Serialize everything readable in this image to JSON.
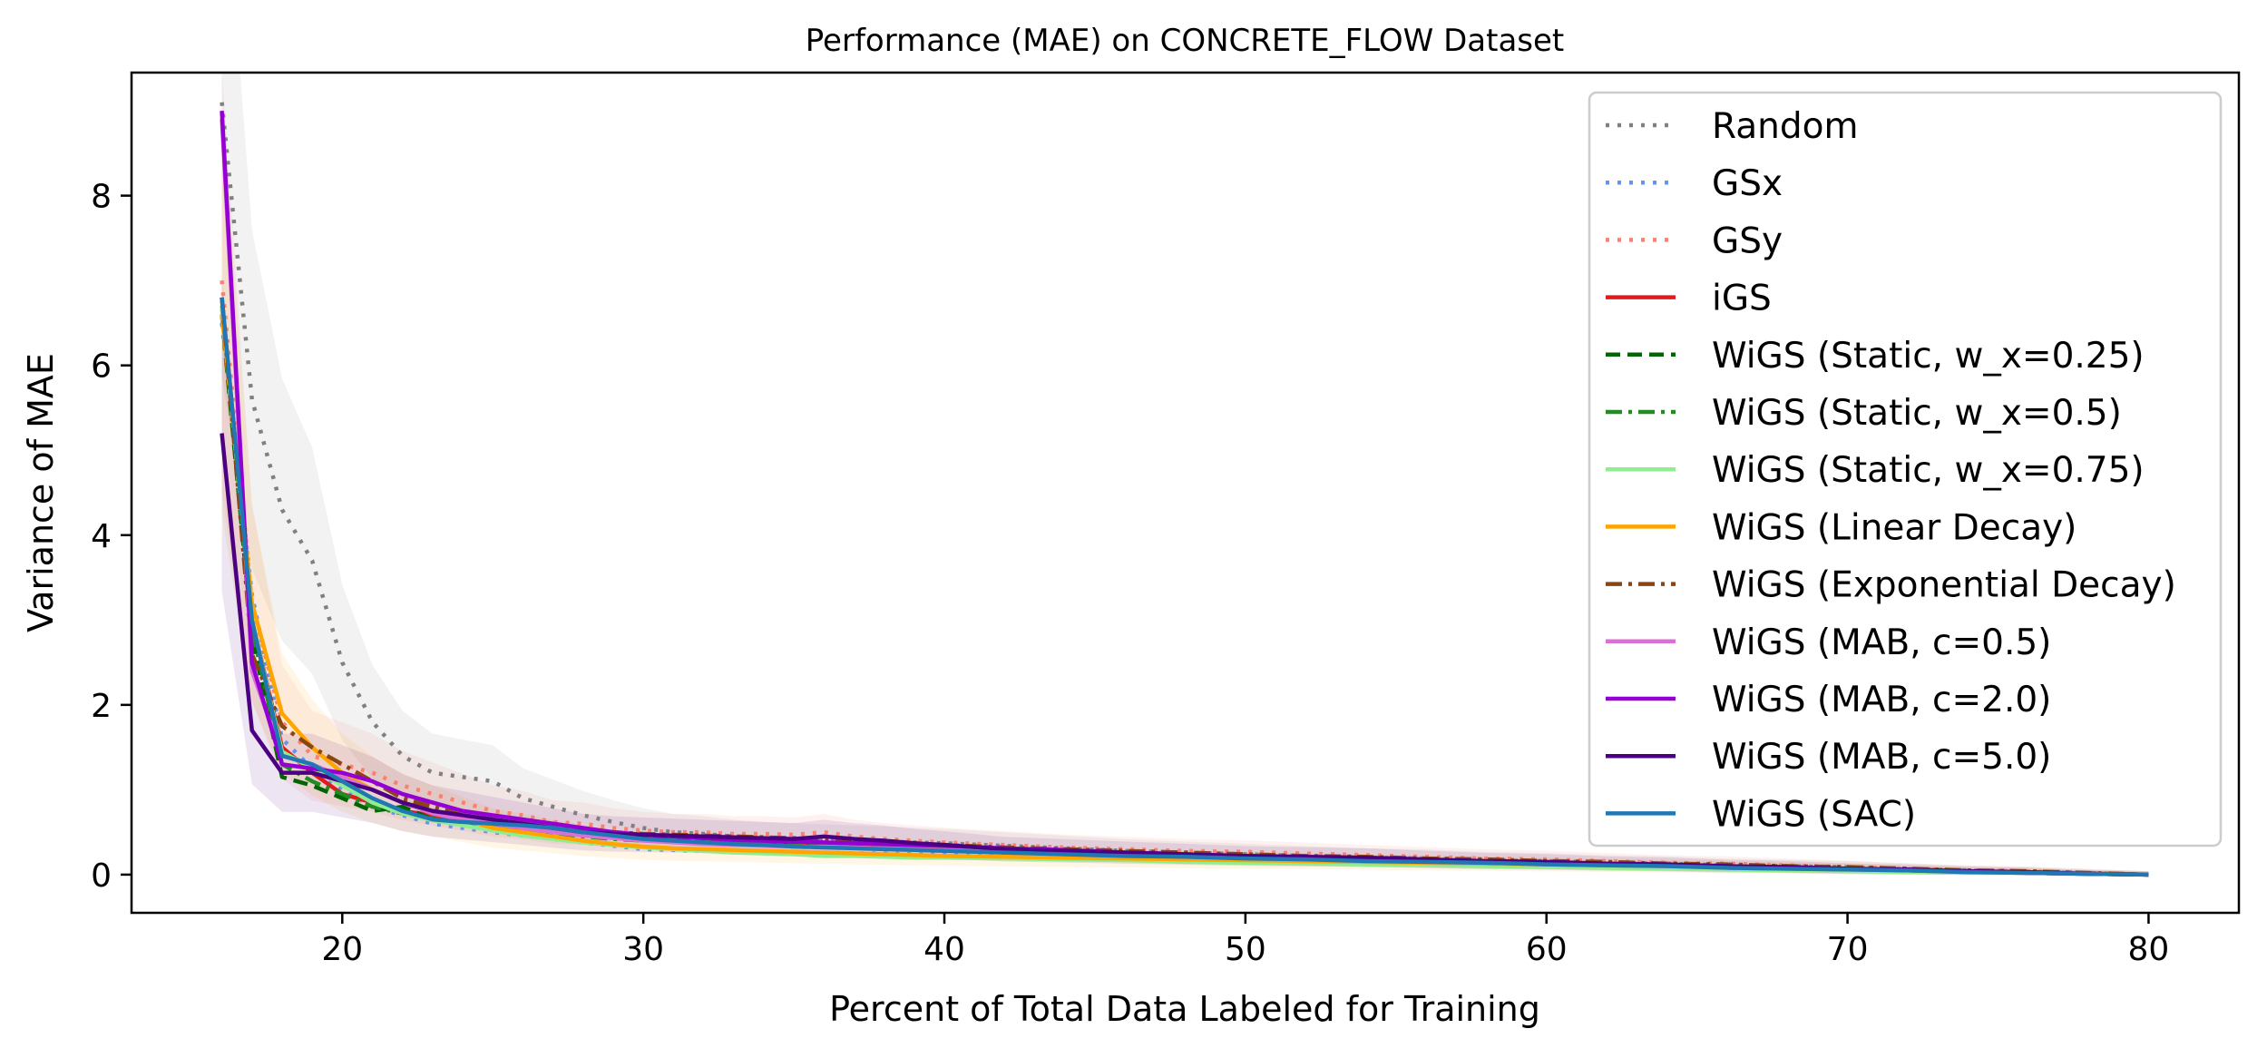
{
  "chart_data": {
    "type": "line",
    "title": "Performance (MAE) on CONCRETE_FLOW Dataset",
    "xlabel": "Percent of Total Data Labeled for Training",
    "ylabel": "Variance of MAE",
    "xlim": [
      13,
      83
    ],
    "ylim": [
      -0.45,
      9.45
    ],
    "xticks": [
      20,
      30,
      40,
      50,
      60,
      70,
      80
    ],
    "yticks": [
      0,
      2,
      4,
      6,
      8
    ],
    "grid": false,
    "legend_position": "upper right",
    "x": [
      16,
      17,
      18,
      19,
      20,
      21,
      22,
      23,
      24,
      25,
      26,
      27,
      28,
      29,
      30,
      31,
      32,
      33,
      34,
      35,
      36,
      37,
      38,
      39,
      40,
      42,
      44,
      46,
      48,
      50,
      52,
      54,
      56,
      58,
      60,
      62,
      64,
      66,
      68,
      70,
      72,
      74,
      76,
      78,
      80
    ],
    "series": [
      {
        "name": "Random",
        "color": "#808080",
        "dash": "dotted",
        "band": true,
        "values": [
          9.1,
          5.6,
          4.3,
          3.7,
          2.5,
          1.8,
          1.4,
          1.2,
          1.15,
          1.1,
          0.9,
          0.8,
          0.7,
          0.62,
          0.55,
          0.5,
          0.48,
          0.45,
          0.43,
          0.42,
          0.41,
          0.4,
          0.39,
          0.38,
          0.37,
          0.34,
          0.31,
          0.28,
          0.26,
          0.24,
          0.22,
          0.2,
          0.19,
          0.17,
          0.16,
          0.14,
          0.13,
          0.11,
          0.1,
          0.09,
          0.07,
          0.05,
          0.04,
          0.02,
          0.0
        ]
      },
      {
        "name": "GSx",
        "color": "#6495ED",
        "dash": "dotted",
        "band": false,
        "values": [
          6.5,
          3.3,
          1.6,
          1.25,
          1.0,
          0.8,
          0.7,
          0.6,
          0.55,
          0.5,
          0.46,
          0.42,
          0.38,
          0.34,
          0.3,
          0.29,
          0.28,
          0.27,
          0.27,
          0.26,
          0.26,
          0.25,
          0.25,
          0.24,
          0.24,
          0.22,
          0.2,
          0.18,
          0.17,
          0.15,
          0.14,
          0.13,
          0.12,
          0.11,
          0.1,
          0.09,
          0.08,
          0.07,
          0.06,
          0.05,
          0.04,
          0.03,
          0.02,
          0.01,
          0.0
        ]
      },
      {
        "name": "GSy",
        "color": "#FA8072",
        "dash": "dotted",
        "band": true,
        "values": [
          7.0,
          3.2,
          1.8,
          1.4,
          1.3,
          1.2,
          1.05,
          0.95,
          0.85,
          0.75,
          0.7,
          0.62,
          0.6,
          0.55,
          0.52,
          0.5,
          0.5,
          0.48,
          0.48,
          0.47,
          0.5,
          0.45,
          0.42,
          0.4,
          0.38,
          0.35,
          0.32,
          0.3,
          0.28,
          0.27,
          0.25,
          0.23,
          0.21,
          0.19,
          0.18,
          0.16,
          0.14,
          0.13,
          0.11,
          0.09,
          0.07,
          0.05,
          0.04,
          0.02,
          0.0
        ]
      },
      {
        "name": "iGS",
        "color": "#E31A1C",
        "dash": "solid",
        "band": false,
        "values": [
          6.8,
          3.0,
          1.5,
          1.2,
          0.95,
          0.85,
          0.75,
          0.7,
          0.65,
          0.6,
          0.55,
          0.5,
          0.47,
          0.44,
          0.42,
          0.4,
          0.38,
          0.37,
          0.36,
          0.35,
          0.35,
          0.34,
          0.33,
          0.32,
          0.31,
          0.29,
          0.27,
          0.25,
          0.23,
          0.21,
          0.19,
          0.18,
          0.16,
          0.14,
          0.13,
          0.11,
          0.1,
          0.09,
          0.08,
          0.06,
          0.05,
          0.04,
          0.02,
          0.01,
          0.0
        ]
      },
      {
        "name": "WiGS (Static, w_x=0.25)",
        "color": "#006400",
        "dash": "dashed",
        "band": false,
        "values": [
          6.6,
          2.8,
          1.15,
          1.05,
          0.9,
          0.75,
          0.8,
          0.65,
          0.6,
          0.55,
          0.52,
          0.5,
          0.48,
          0.46,
          0.45,
          0.44,
          0.43,
          0.42,
          0.4,
          0.38,
          0.37,
          0.36,
          0.35,
          0.33,
          0.32,
          0.3,
          0.28,
          0.26,
          0.24,
          0.22,
          0.2,
          0.19,
          0.17,
          0.15,
          0.14,
          0.12,
          0.11,
          0.09,
          0.08,
          0.07,
          0.05,
          0.04,
          0.02,
          0.01,
          0.0
        ]
      },
      {
        "name": "WiGS (Static, w_x=0.5)",
        "color": "#228B22",
        "dash": "dashdot",
        "band": false,
        "values": [
          6.7,
          2.9,
          1.3,
          1.1,
          0.95,
          0.8,
          0.72,
          0.66,
          0.6,
          0.56,
          0.52,
          0.48,
          0.45,
          0.42,
          0.4,
          0.39,
          0.38,
          0.36,
          0.35,
          0.34,
          0.33,
          0.32,
          0.31,
          0.3,
          0.29,
          0.27,
          0.25,
          0.23,
          0.21,
          0.2,
          0.18,
          0.17,
          0.15,
          0.14,
          0.12,
          0.11,
          0.1,
          0.08,
          0.07,
          0.06,
          0.05,
          0.03,
          0.02,
          0.01,
          0.0
        ]
      },
      {
        "name": "WiGS (Static, w_x=0.75)",
        "color": "#90EE90",
        "dash": "solid",
        "band": false,
        "values": [
          6.7,
          3.0,
          1.45,
          1.25,
          1.05,
          0.85,
          0.72,
          0.64,
          0.58,
          0.52,
          0.46,
          0.42,
          0.38,
          0.35,
          0.32,
          0.3,
          0.28,
          0.26,
          0.25,
          0.24,
          0.22,
          0.22,
          0.21,
          0.2,
          0.2,
          0.19,
          0.18,
          0.17,
          0.15,
          0.14,
          0.13,
          0.12,
          0.11,
          0.1,
          0.09,
          0.08,
          0.07,
          0.06,
          0.05,
          0.04,
          0.03,
          0.02,
          0.02,
          0.01,
          0.0
        ]
      },
      {
        "name": "WiGS (Linear Decay)",
        "color": "#FFA500",
        "dash": "solid",
        "band": true,
        "values": [
          6.6,
          3.2,
          1.9,
          1.5,
          1.2,
          1.0,
          0.85,
          0.75,
          0.65,
          0.55,
          0.5,
          0.45,
          0.4,
          0.36,
          0.33,
          0.31,
          0.3,
          0.29,
          0.28,
          0.27,
          0.26,
          0.25,
          0.24,
          0.23,
          0.22,
          0.21,
          0.2,
          0.19,
          0.18,
          0.17,
          0.16,
          0.15,
          0.14,
          0.13,
          0.12,
          0.11,
          0.1,
          0.09,
          0.08,
          0.07,
          0.05,
          0.04,
          0.03,
          0.01,
          0.0
        ]
      },
      {
        "name": "WiGS (Exponential Decay)",
        "color": "#8B4513",
        "dash": "dashdot",
        "band": false,
        "values": [
          6.8,
          2.6,
          1.75,
          1.5,
          1.3,
          1.1,
          0.9,
          0.8,
          0.7,
          0.65,
          0.6,
          0.55,
          0.52,
          0.5,
          0.48,
          0.47,
          0.46,
          0.45,
          0.44,
          0.43,
          0.42,
          0.4,
          0.38,
          0.36,
          0.35,
          0.32,
          0.3,
          0.28,
          0.26,
          0.24,
          0.22,
          0.21,
          0.19,
          0.18,
          0.16,
          0.15,
          0.13,
          0.12,
          0.1,
          0.09,
          0.07,
          0.05,
          0.04,
          0.02,
          0.0
        ]
      },
      {
        "name": "WiGS (MAB, c=0.5)",
        "color": "#DA70D6",
        "dash": "solid",
        "band": false,
        "values": [
          8.9,
          2.4,
          1.4,
          1.3,
          1.15,
          1.0,
          0.85,
          0.72,
          0.65,
          0.6,
          0.55,
          0.5,
          0.46,
          0.43,
          0.4,
          0.38,
          0.36,
          0.35,
          0.34,
          0.33,
          0.33,
          0.32,
          0.31,
          0.3,
          0.29,
          0.27,
          0.25,
          0.23,
          0.21,
          0.2,
          0.18,
          0.17,
          0.15,
          0.14,
          0.12,
          0.11,
          0.1,
          0.08,
          0.07,
          0.06,
          0.05,
          0.03,
          0.02,
          0.01,
          0.0
        ]
      },
      {
        "name": "WiGS (MAB, c=2.0)",
        "color": "#9400D3",
        "dash": "solid",
        "band": false,
        "values": [
          9.0,
          2.5,
          1.3,
          1.25,
          1.2,
          1.1,
          0.95,
          0.85,
          0.75,
          0.7,
          0.65,
          0.6,
          0.55,
          0.5,
          0.47,
          0.45,
          0.43,
          0.41,
          0.4,
          0.39,
          0.38,
          0.37,
          0.36,
          0.35,
          0.34,
          0.31,
          0.29,
          0.26,
          0.24,
          0.22,
          0.2,
          0.19,
          0.17,
          0.15,
          0.14,
          0.12,
          0.11,
          0.09,
          0.08,
          0.07,
          0.05,
          0.04,
          0.02,
          0.01,
          0.0
        ]
      },
      {
        "name": "WiGS (MAB, c=5.0)",
        "color": "#4B0082",
        "dash": "solid",
        "band": true,
        "values": [
          5.2,
          1.7,
          1.2,
          1.2,
          1.1,
          1.0,
          0.85,
          0.75,
          0.7,
          0.65,
          0.6,
          0.55,
          0.5,
          0.48,
          0.47,
          0.46,
          0.45,
          0.44,
          0.43,
          0.42,
          0.45,
          0.42,
          0.4,
          0.37,
          0.35,
          0.3,
          0.28,
          0.26,
          0.24,
          0.22,
          0.21,
          0.2,
          0.18,
          0.16,
          0.15,
          0.13,
          0.12,
          0.1,
          0.09,
          0.07,
          0.06,
          0.04,
          0.03,
          0.01,
          0.0
        ]
      },
      {
        "name": "WiGS (SAC)",
        "color": "#1F77B4",
        "dash": "solid",
        "band": false,
        "values": [
          6.8,
          3.0,
          1.4,
          1.3,
          1.1,
          0.9,
          0.75,
          0.65,
          0.62,
          0.6,
          0.58,
          0.55,
          0.5,
          0.46,
          0.42,
          0.4,
          0.38,
          0.36,
          0.35,
          0.33,
          0.32,
          0.31,
          0.3,
          0.29,
          0.28,
          0.26,
          0.24,
          0.22,
          0.21,
          0.19,
          0.18,
          0.16,
          0.15,
          0.14,
          0.12,
          0.11,
          0.1,
          0.08,
          0.07,
          0.06,
          0.05,
          0.03,
          0.02,
          0.01,
          0.0
        ]
      }
    ]
  }
}
